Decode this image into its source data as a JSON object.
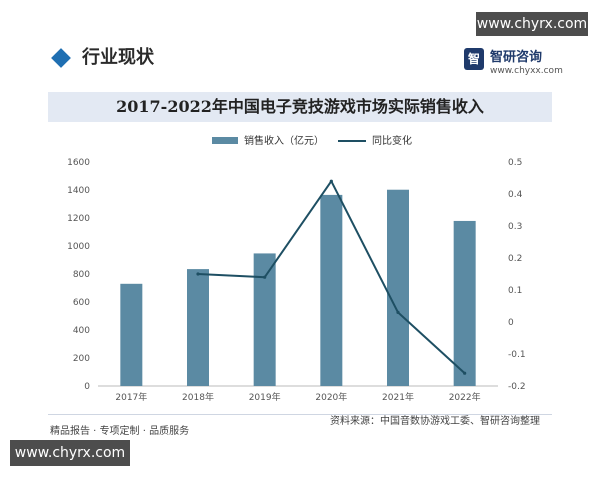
{
  "watermarks": {
    "top": "www.chyrx.com",
    "bottom": "www.chyrx.com"
  },
  "section": {
    "title": "行业现状"
  },
  "brand": {
    "name": "智研咨询",
    "url": "www.chyxx.com",
    "logo_text": "智"
  },
  "footer": {
    "left": "精品报告 · 专项定制 · 品质服务",
    "source": "资料来源：中国音数协游戏工委、智研咨询整理"
  },
  "colors": {
    "bar": "#5b8aa3",
    "line": "#1e4f63",
    "title_bg": "#e3e9f3",
    "accent": "#1f6fb2"
  },
  "chart_data": {
    "type": "bar",
    "title": "2017-2022年中国电子竞技游戏市场实际销售收入",
    "categories": [
      "2017年",
      "2018年",
      "2019年",
      "2020年",
      "2021年",
      "2022年"
    ],
    "series": [
      {
        "name": "销售收入（亿元）",
        "type": "bar",
        "axis": "left",
        "values": [
          730,
          835,
          947,
          1365,
          1402,
          1179
        ]
      },
      {
        "name": "同比变化",
        "type": "line",
        "axis": "right",
        "values": [
          null,
          0.15,
          0.14,
          0.44,
          0.03,
          -0.16
        ]
      }
    ],
    "y_left": {
      "ylim": [
        0,
        1600
      ],
      "ticks": [
        0,
        200,
        400,
        600,
        800,
        1000,
        1200,
        1400,
        1600
      ]
    },
    "y_right": {
      "ylim": [
        -0.2,
        0.5
      ],
      "ticks": [
        "-0.2",
        "-0.1",
        "0",
        "0.1",
        "0.2",
        "0.3",
        "0.4",
        "0.5"
      ]
    },
    "legend": "top-center",
    "grid": false
  }
}
